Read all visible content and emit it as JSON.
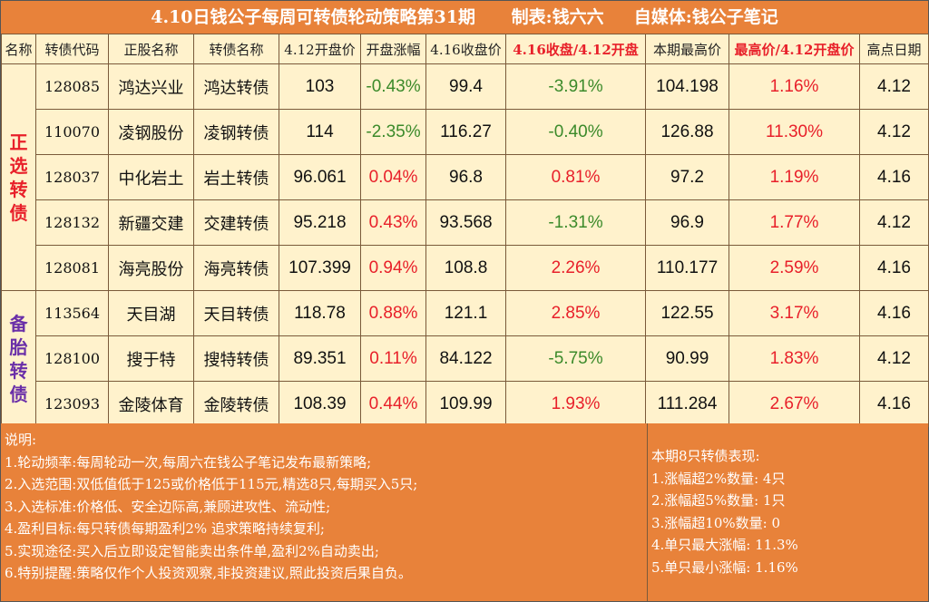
{
  "title": "4.10日钱公子每周可转债轮动策略第31期      制表:钱六六     自媒体:钱公子笔记",
  "headers": [
    "名称",
    "转债代码",
    "正股名称",
    "转债名称",
    "4.12开盘价",
    "开盘涨幅",
    "4.16收盘价",
    "4.16收盘/4.12开盘",
    "本期最高价",
    "最高价/4.12开盘价",
    "高点日期"
  ],
  "groups": [
    {
      "label": "正选转债",
      "chars": [
        "正",
        "选",
        "转",
        "债"
      ]
    },
    {
      "label": "备胎转债",
      "chars": [
        "备",
        "胎",
        "转",
        "债"
      ]
    }
  ],
  "rows": [
    {
      "code": "128085",
      "stock": "鸿达兴业",
      "bond": "鸿达转债",
      "open": "103",
      "open_chg": "-0.43%",
      "close": "99.4",
      "close_chg": "-3.91%",
      "high": "104.198",
      "high_chg": "1.16%",
      "high_date": "4.12"
    },
    {
      "code": "110070",
      "stock": "凌钢股份",
      "bond": "凌钢转债",
      "open": "114",
      "open_chg": "-2.35%",
      "close": "116.27",
      "close_chg": "-0.40%",
      "high": "126.88",
      "high_chg": "11.30%",
      "high_date": "4.12"
    },
    {
      "code": "128037",
      "stock": "中化岩土",
      "bond": "岩土转债",
      "open": "96.061",
      "open_chg": "0.04%",
      "close": "96.8",
      "close_chg": "0.81%",
      "high": "97.2",
      "high_chg": "1.19%",
      "high_date": "4.16"
    },
    {
      "code": "128132",
      "stock": "新疆交建",
      "bond": "交建转债",
      "open": "95.218",
      "open_chg": "0.43%",
      "close": "93.568",
      "close_chg": "-1.31%",
      "high": "96.9",
      "high_chg": "1.77%",
      "high_date": "4.12"
    },
    {
      "code": "128081",
      "stock": "海亮股份",
      "bond": "海亮转债",
      "open": "107.399",
      "open_chg": "0.94%",
      "close": "108.8",
      "close_chg": "2.26%",
      "high": "110.177",
      "high_chg": "2.59%",
      "high_date": "4.16"
    },
    {
      "code": "113564",
      "stock": "天目湖",
      "bond": "天目转债",
      "open": "118.78",
      "open_chg": "0.88%",
      "close": "121.1",
      "close_chg": "2.85%",
      "high": "122.55",
      "high_chg": "3.17%",
      "high_date": "4.16"
    },
    {
      "code": "128100",
      "stock": "搜于特",
      "bond": "搜特转债",
      "open": "89.351",
      "open_chg": "0.11%",
      "close": "84.122",
      "close_chg": "-5.75%",
      "high": "90.99",
      "high_chg": "1.83%",
      "high_date": "4.12"
    },
    {
      "code": "123093",
      "stock": "金陵体育",
      "bond": "金陵转债",
      "open": "108.39",
      "open_chg": "0.44%",
      "close": "109.99",
      "close_chg": "1.93%",
      "high": "111.284",
      "high_chg": "2.67%",
      "high_date": "4.16"
    }
  ],
  "notes": {
    "heading": "说明:",
    "items": [
      "1.轮动频率:每周轮动一次,每周六在钱公子笔记发布最新策略;",
      "2.入选范围:双低值低于125或价格低于115元,精选8只,每期买入5只;",
      "3.入选标准:价格低、安全边际高,兼顾进攻性、流动性;",
      "4.盈利目标:每只转债每期盈利2% 追求策略持续复利;",
      "5.实现途径:买入后立即设定智能卖出条件单,盈利2%自动卖出;",
      "6.特别提醒:策略仅作个人投资观察,非投资建议,照此投资后果自负。"
    ]
  },
  "summary": {
    "heading": "本期8只转债表现:",
    "items": [
      "1.涨幅超2%数量: 4只",
      "2.涨幅超5%数量: 1只",
      "3.涨幅超10%数量: 0",
      "4.单只最大涨幅: 11.3%",
      "5.单只最小涨幅: 1.16%"
    ]
  },
  "colors": {
    "accent": "#e8823a",
    "cell_bg": "#fff2cc",
    "positive": "#e8202a",
    "negative": "#3b8a2a",
    "group2": "#6a2fa8"
  }
}
